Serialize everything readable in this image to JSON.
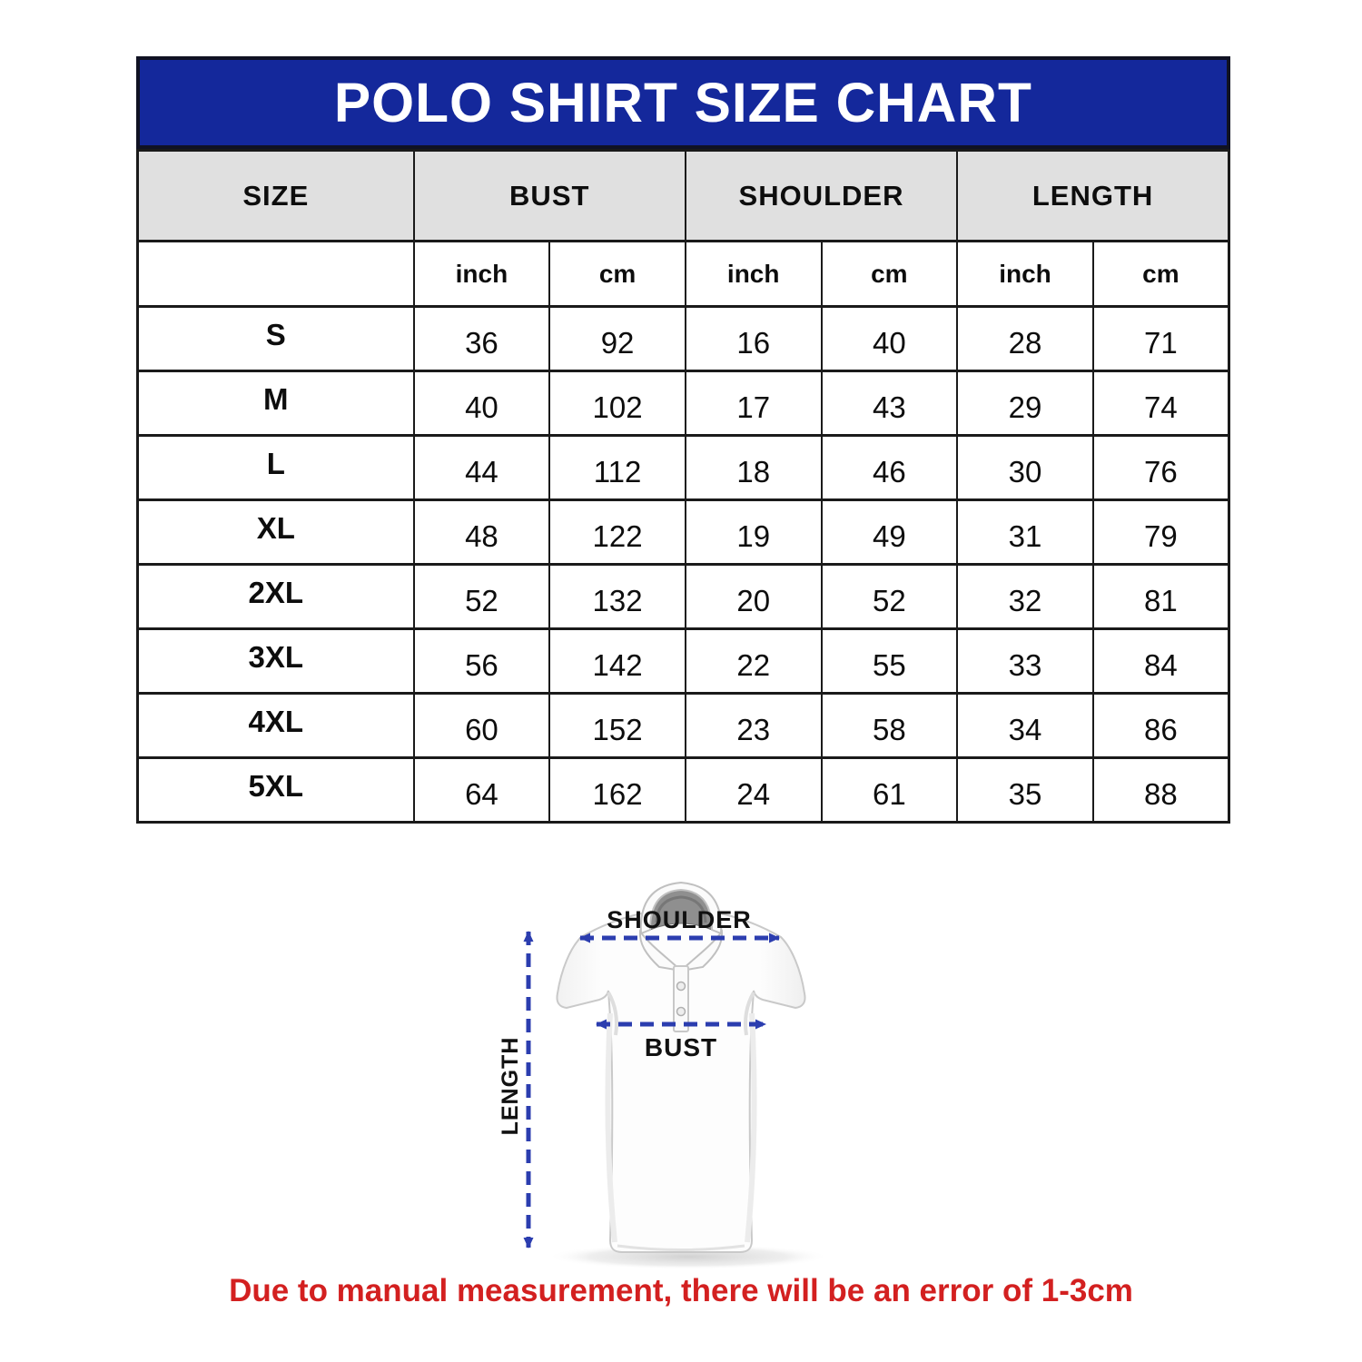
{
  "title": "POLO SHIRT SIZE CHART",
  "table": {
    "size_header": "SIZE",
    "groups": [
      {
        "label": "BUST"
      },
      {
        "label": "SHOULDER"
      },
      {
        "label": "LENGTH"
      }
    ],
    "unit_labels": [
      "inch",
      "cm",
      "inch",
      "cm",
      "inch",
      "cm"
    ],
    "rows": [
      {
        "size": "S",
        "values": [
          "36",
          "92",
          "16",
          "40",
          "28",
          "71"
        ]
      },
      {
        "size": "M",
        "values": [
          "40",
          "102",
          "17",
          "43",
          "29",
          "74"
        ]
      },
      {
        "size": "L",
        "values": [
          "44",
          "112",
          "18",
          "46",
          "30",
          "76"
        ]
      },
      {
        "size": "XL",
        "values": [
          "48",
          "122",
          "19",
          "49",
          "31",
          "79"
        ]
      },
      {
        "size": "2XL",
        "values": [
          "52",
          "132",
          "20",
          "52",
          "32",
          "81"
        ]
      },
      {
        "size": "3XL",
        "values": [
          "56",
          "142",
          "22",
          "55",
          "33",
          "84"
        ]
      },
      {
        "size": "4XL",
        "values": [
          "60",
          "152",
          "23",
          "58",
          "34",
          "86"
        ]
      },
      {
        "size": "5XL",
        "values": [
          "64",
          "162",
          "24",
          "61",
          "35",
          "88"
        ]
      }
    ]
  },
  "diagram": {
    "shoulder_label": "SHOULDER",
    "bust_label": "BUST",
    "length_label": "LENGTH"
  },
  "note": "Due to manual measurement, there will be an error of 1-3cm",
  "colors": {
    "banner_blue": "#14289B",
    "header_gray": "#e0e0e0",
    "arrow_blue": "#2b3daf",
    "note_red": "#d32020",
    "border_dark": "#1a1a1a"
  },
  "chart_data": {
    "type": "table",
    "title": "POLO SHIRT SIZE CHART",
    "column_groups": [
      "SIZE",
      "BUST",
      "SHOULDER",
      "LENGTH"
    ],
    "columns": [
      "SIZE",
      "BUST inch",
      "BUST cm",
      "SHOULDER inch",
      "SHOULDER cm",
      "LENGTH inch",
      "LENGTH cm"
    ],
    "rows": [
      [
        "S",
        36,
        92,
        16,
        40,
        28,
        71
      ],
      [
        "M",
        40,
        102,
        17,
        43,
        29,
        74
      ],
      [
        "L",
        44,
        112,
        18,
        46,
        30,
        76
      ],
      [
        "XL",
        48,
        122,
        19,
        49,
        31,
        79
      ],
      [
        "2XL",
        52,
        132,
        20,
        52,
        32,
        81
      ],
      [
        "3XL",
        56,
        142,
        22,
        55,
        33,
        84
      ],
      [
        "4XL",
        60,
        152,
        23,
        58,
        34,
        86
      ],
      [
        "5XL",
        64,
        162,
        24,
        61,
        35,
        88
      ]
    ],
    "annotations": [
      "Due to manual measurement, there will be an error of 1-3cm"
    ]
  }
}
